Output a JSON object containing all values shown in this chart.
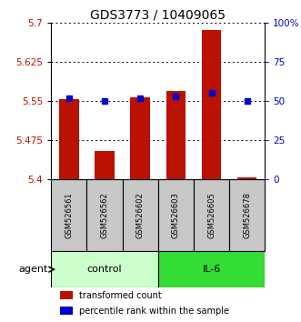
{
  "title": "GDS3773 / 10409065",
  "samples": [
    "GSM526561",
    "GSM526562",
    "GSM526602",
    "GSM526603",
    "GSM526605",
    "GSM526678"
  ],
  "bar_values": [
    5.554,
    5.455,
    5.557,
    5.57,
    5.685,
    5.405
  ],
  "percentile_values": [
    52,
    50,
    52,
    53,
    55,
    50
  ],
  "ymin": 5.4,
  "ymax": 5.7,
  "y_ticks": [
    5.4,
    5.475,
    5.55,
    5.625,
    5.7
  ],
  "y_tick_labels": [
    "5.4",
    "5.475",
    "5.55",
    "5.625",
    "5.7"
  ],
  "y2_ticks": [
    0,
    25,
    50,
    75,
    100
  ],
  "y2_tick_labels": [
    "0",
    "25",
    "50",
    "75",
    "100%"
  ],
  "bar_color": "#bb1100",
  "percentile_color": "#0000cc",
  "bar_width": 0.55,
  "groups": [
    {
      "label": "control",
      "indices": [
        0,
        1,
        2
      ],
      "color": "#ccffcc"
    },
    {
      "label": "IL-6",
      "indices": [
        3,
        4,
        5
      ],
      "color": "#33dd33"
    }
  ],
  "agent_label": "agent",
  "legend_items": [
    {
      "label": "transformed count",
      "color": "#bb1100"
    },
    {
      "label": "percentile rank within the sample",
      "color": "#0000cc"
    }
  ],
  "grid_color": "black",
  "title_fontsize": 10,
  "tick_fontsize": 7.5,
  "sample_fontsize": 6,
  "label_fontsize": 8,
  "legend_fontsize": 7
}
